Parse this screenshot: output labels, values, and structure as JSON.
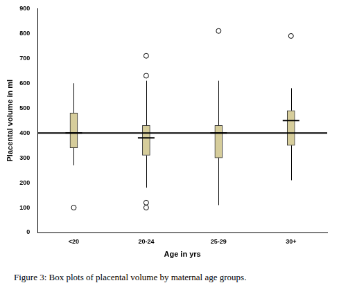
{
  "chart_data": {
    "type": "boxplot",
    "caption": "Figure 3: Box plots of placental volume by maternal age groups.",
    "x_label": "Age in yrs",
    "y_label": "Placental volume in ml",
    "categories": [
      "<20",
      "20-24",
      "25-29",
      "30+"
    ],
    "boxes": [
      {
        "min": 270,
        "q1": 340,
        "median": 400,
        "q3": 480,
        "max": 600,
        "outliers": [
          100
        ]
      },
      {
        "min": 180,
        "q1": 310,
        "median": 380,
        "q3": 430,
        "max": 610,
        "outliers": [
          710,
          630,
          120,
          100
        ]
      },
      {
        "min": 110,
        "q1": 300,
        "median": 400,
        "q3": 430,
        "max": 610,
        "outliers": [
          810
        ]
      },
      {
        "min": 210,
        "q1": 350,
        "median": 450,
        "q3": 490,
        "max": 580,
        "outliers": [
          790
        ]
      }
    ],
    "reference_line": 400,
    "color": "#d6cd9b",
    "ylim": [
      0,
      900
    ],
    "yticks": [
      0,
      100,
      200,
      300,
      400,
      500,
      600,
      700,
      800,
      900
    ],
    "grid": false
  }
}
